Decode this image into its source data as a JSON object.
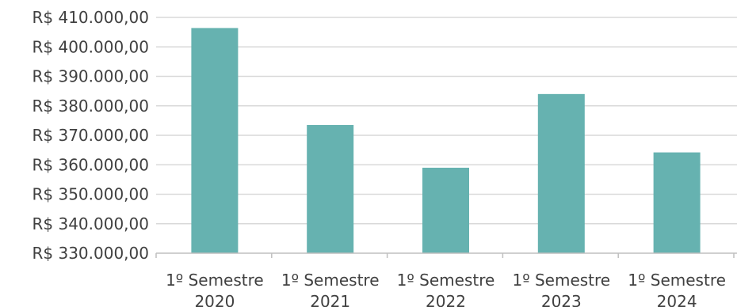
{
  "chart_data": {
    "type": "bar",
    "categories": [
      [
        "1º Semestre",
        "2020"
      ],
      [
        "1º Semestre",
        "2021"
      ],
      [
        "1º Semestre",
        "2022"
      ],
      [
        "1º Semestre",
        "2023"
      ],
      [
        "1º Semestre",
        "2024"
      ]
    ],
    "values": [
      406400,
      373500,
      359000,
      384000,
      364200
    ],
    "ylim": [
      330000,
      410000
    ],
    "ytick_step": 10000,
    "y_ticks": [
      "R$ 330.000,00",
      "R$ 340.000,00",
      "R$ 350.000,00",
      "R$ 360.000,00",
      "R$ 370.000,00",
      "R$ 380.000,00",
      "R$ 390.000,00",
      "R$ 400.000,00",
      "R$ 410.000,00"
    ],
    "bar_color": "#66b2b0",
    "grid": true,
    "title": "",
    "xlabel": "",
    "ylabel": ""
  }
}
